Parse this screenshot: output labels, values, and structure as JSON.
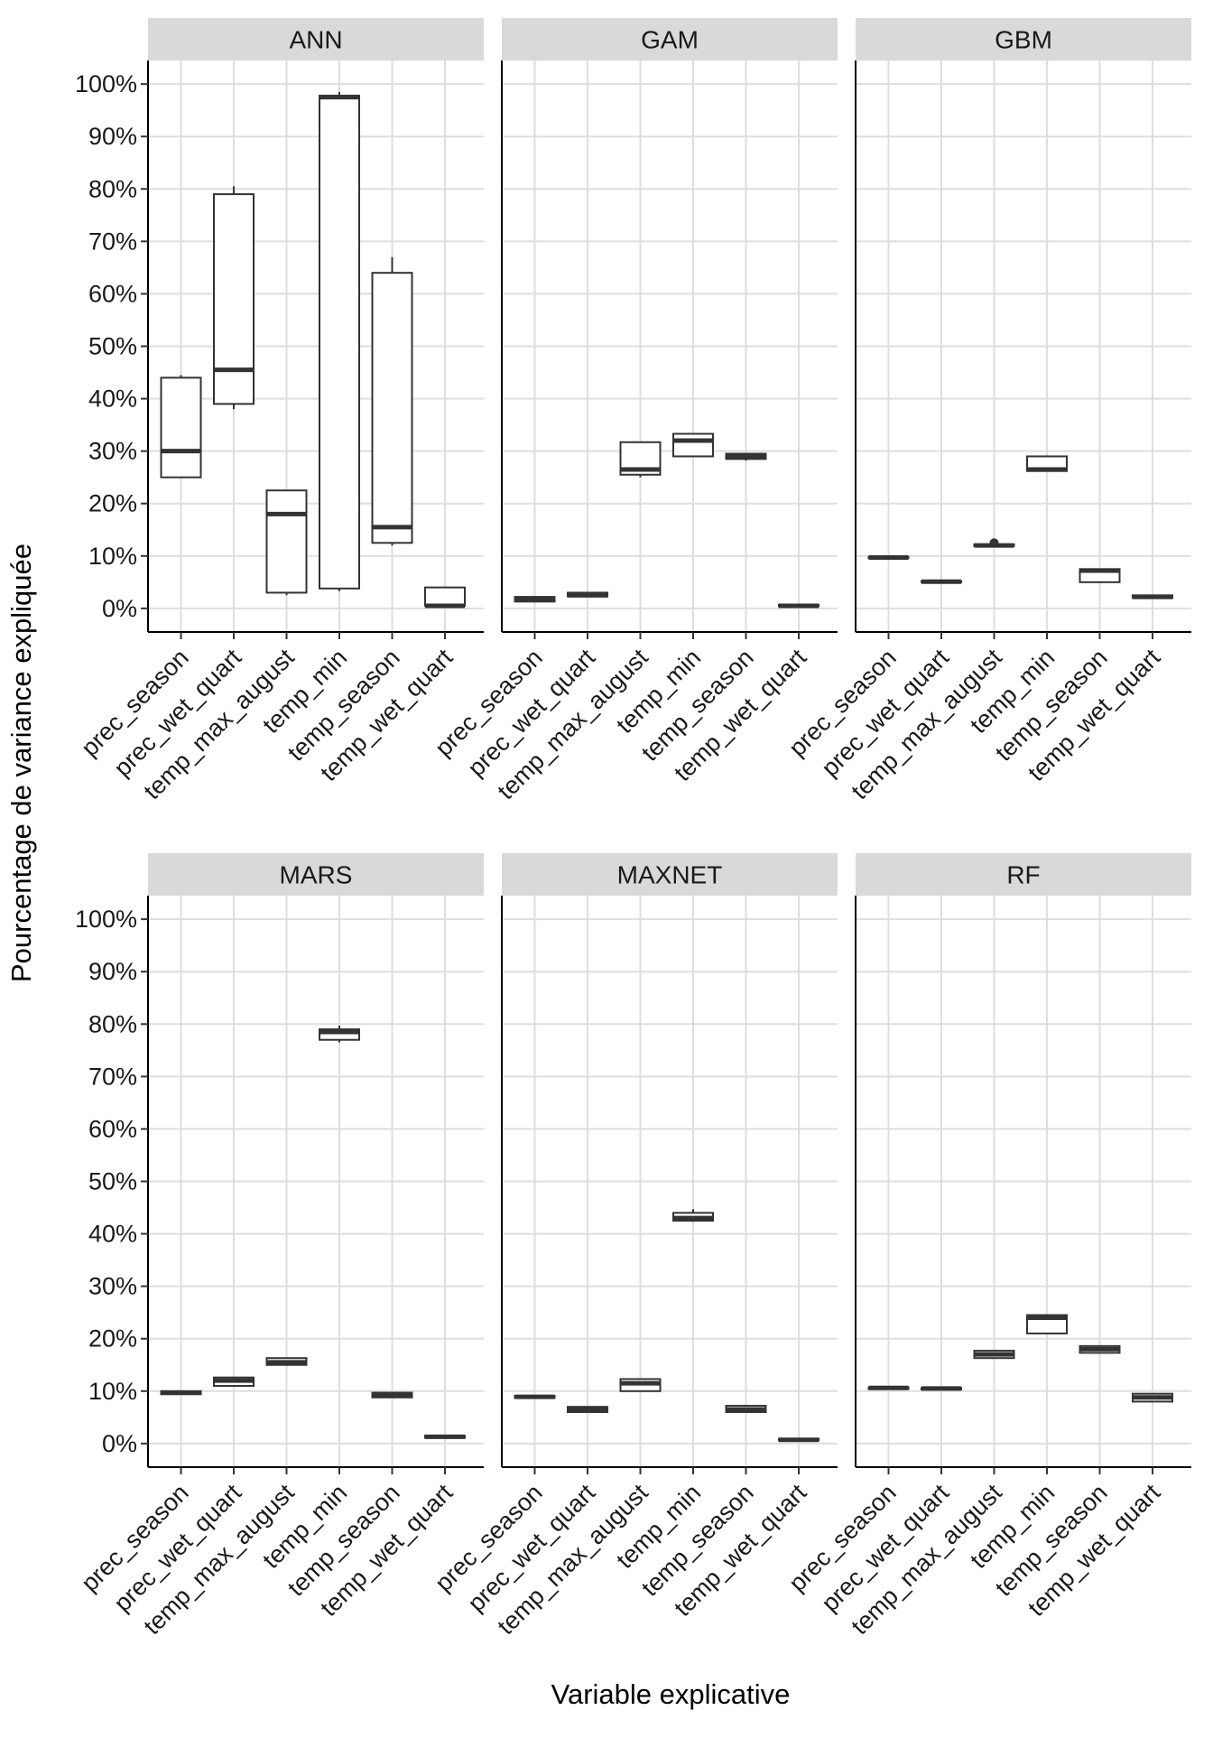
{
  "chart_data": {
    "type": "boxplot",
    "ylabel": "Pourcentage de variance expliquée",
    "xlabel": "Variable explicative",
    "ylim": [
      -0.045,
      1.045
    ],
    "y_ticks": [
      0,
      0.1,
      0.2,
      0.3,
      0.4,
      0.5,
      0.6,
      0.7,
      0.8,
      0.9,
      1.0
    ],
    "y_tick_labels": [
      "0%",
      "10%",
      "20%",
      "30%",
      "40%",
      "50%",
      "60%",
      "70%",
      "80%",
      "90%",
      "100%"
    ],
    "categories": [
      "prec_season",
      "prec_wet_quart",
      "temp_max_august",
      "temp_min",
      "temp_season",
      "temp_wet_quart"
    ],
    "grid": true,
    "panels": [
      {
        "name": "ANN",
        "boxes": [
          {
            "min": 0.25,
            "q1": 0.25,
            "median": 0.3,
            "q3": 0.44,
            "max": 0.445
          },
          {
            "min": 0.38,
            "q1": 0.39,
            "median": 0.455,
            "q3": 0.79,
            "max": 0.805
          },
          {
            "min": 0.025,
            "q1": 0.03,
            "median": 0.18,
            "q3": 0.225,
            "max": 0.225
          },
          {
            "min": 0.033,
            "q1": 0.038,
            "median": 0.975,
            "q3": 0.978,
            "max": 0.985
          },
          {
            "min": 0.12,
            "q1": 0.125,
            "median": 0.155,
            "q3": 0.64,
            "max": 0.67
          },
          {
            "min": 0.003,
            "q1": 0.005,
            "median": 0.005,
            "q3": 0.04,
            "max": 0.04
          }
        ]
      },
      {
        "name": "GAM",
        "boxes": [
          {
            "min": 0.012,
            "q1": 0.013,
            "median": 0.018,
            "q3": 0.022,
            "max": 0.023
          },
          {
            "min": 0.022,
            "q1": 0.023,
            "median": 0.025,
            "q3": 0.03,
            "max": 0.031
          },
          {
            "min": 0.25,
            "q1": 0.255,
            "median": 0.265,
            "q3": 0.317,
            "max": 0.318
          },
          {
            "min": 0.29,
            "q1": 0.29,
            "median": 0.32,
            "q3": 0.333,
            "max": 0.333
          },
          {
            "min": 0.282,
            "q1": 0.285,
            "median": 0.29,
            "q3": 0.295,
            "max": 0.296
          },
          {
            "min": 0.003,
            "q1": 0.004,
            "median": 0.005,
            "q3": 0.007,
            "max": 0.008
          }
        ]
      },
      {
        "name": "GBM",
        "boxes": [
          {
            "min": 0.096,
            "q1": 0.096,
            "median": 0.097,
            "q3": 0.098,
            "max": 0.098
          },
          {
            "min": 0.05,
            "q1": 0.05,
            "median": 0.051,
            "q3": 0.052,
            "max": 0.052
          },
          {
            "min": 0.118,
            "q1": 0.119,
            "median": 0.12,
            "q3": 0.122,
            "max": 0.123,
            "outliers": [
              0.125
            ]
          },
          {
            "min": 0.262,
            "q1": 0.262,
            "median": 0.265,
            "q3": 0.29,
            "max": 0.29
          },
          {
            "min": 0.048,
            "q1": 0.05,
            "median": 0.072,
            "q3": 0.075,
            "max": 0.075
          },
          {
            "min": 0.02,
            "q1": 0.02,
            "median": 0.022,
            "q3": 0.025,
            "max": 0.025
          }
        ]
      },
      {
        "name": "MARS",
        "boxes": [
          {
            "min": 0.093,
            "q1": 0.094,
            "median": 0.097,
            "q3": 0.1,
            "max": 0.101
          },
          {
            "min": 0.11,
            "q1": 0.11,
            "median": 0.12,
            "q3": 0.126,
            "max": 0.126
          },
          {
            "min": 0.15,
            "q1": 0.15,
            "median": 0.155,
            "q3": 0.163,
            "max": 0.163
          },
          {
            "min": 0.765,
            "q1": 0.77,
            "median": 0.785,
            "q3": 0.79,
            "max": 0.797
          },
          {
            "min": 0.087,
            "q1": 0.088,
            "median": 0.093,
            "q3": 0.097,
            "max": 0.098
          },
          {
            "min": 0.01,
            "q1": 0.011,
            "median": 0.013,
            "q3": 0.015,
            "max": 0.016
          }
        ]
      },
      {
        "name": "MAXNET",
        "boxes": [
          {
            "min": 0.086,
            "q1": 0.087,
            "median": 0.089,
            "q3": 0.091,
            "max": 0.092
          },
          {
            "min": 0.06,
            "q1": 0.06,
            "median": 0.065,
            "q3": 0.07,
            "max": 0.07
          },
          {
            "min": 0.1,
            "q1": 0.1,
            "median": 0.115,
            "q3": 0.123,
            "max": 0.124
          },
          {
            "min": 0.423,
            "q1": 0.425,
            "median": 0.43,
            "q3": 0.44,
            "max": 0.447
          },
          {
            "min": 0.06,
            "q1": 0.06,
            "median": 0.065,
            "q3": 0.072,
            "max": 0.072
          },
          {
            "min": 0.005,
            "q1": 0.006,
            "median": 0.007,
            "q3": 0.009,
            "max": 0.009
          }
        ]
      },
      {
        "name": "RF",
        "boxes": [
          {
            "min": 0.104,
            "q1": 0.104,
            "median": 0.106,
            "q3": 0.107,
            "max": 0.107
          },
          {
            "min": 0.103,
            "q1": 0.103,
            "median": 0.105,
            "q3": 0.106,
            "max": 0.106
          },
          {
            "min": 0.163,
            "q1": 0.163,
            "median": 0.17,
            "q3": 0.177,
            "max": 0.177
          },
          {
            "min": 0.21,
            "q1": 0.21,
            "median": 0.24,
            "q3": 0.245,
            "max": 0.245
          },
          {
            "min": 0.173,
            "q1": 0.173,
            "median": 0.18,
            "q3": 0.186,
            "max": 0.186
          },
          {
            "min": 0.08,
            "q1": 0.08,
            "median": 0.088,
            "q3": 0.095,
            "max": 0.095
          }
        ]
      }
    ]
  }
}
